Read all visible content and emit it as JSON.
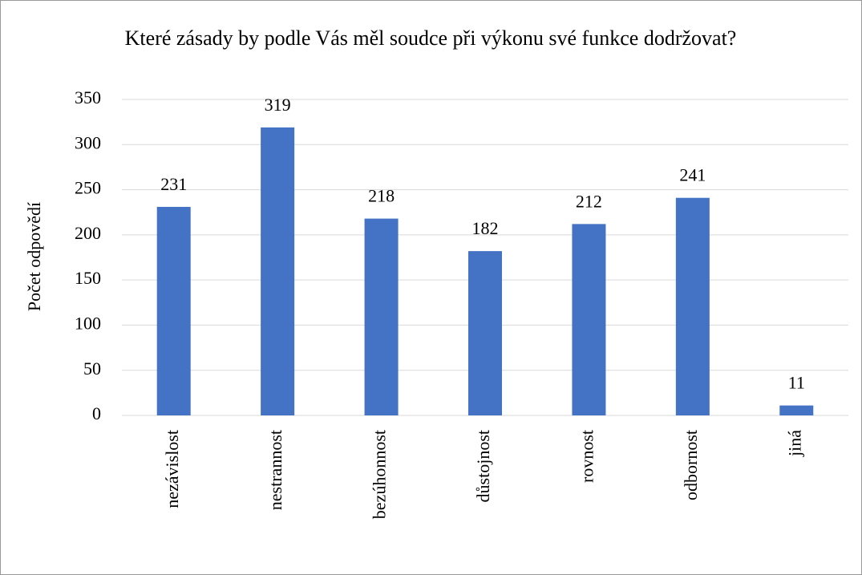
{
  "chart_data": {
    "type": "bar",
    "title": "Které zásady by podle Vás měl soudce při výkonu své funkce dodržovat?",
    "y_axis_label": "Počet odpovědí",
    "categories": [
      "nezávislost",
      "nestrannost",
      "bezúhonnost",
      "důstojnost",
      "rovnost",
      "odbornost",
      "jiná"
    ],
    "values": [
      231,
      319,
      218,
      182,
      212,
      241,
      11
    ],
    "color": "#4472c4",
    "ylim": [
      0,
      350
    ],
    "yticks": [
      0,
      50,
      100,
      150,
      200,
      250,
      300,
      350
    ],
    "grid": true
  }
}
